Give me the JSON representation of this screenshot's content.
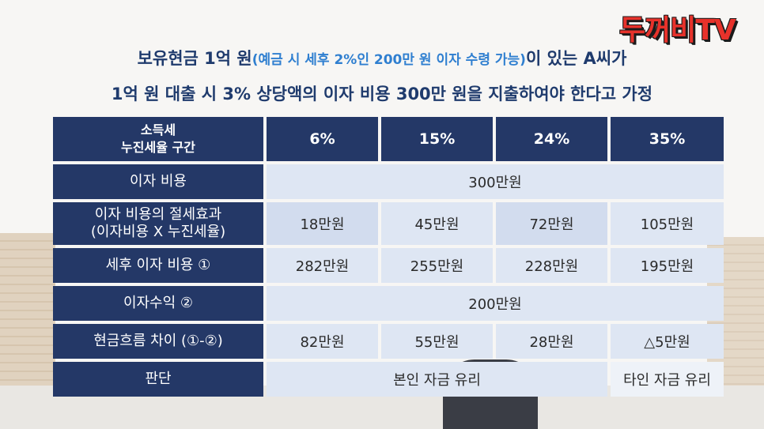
{
  "channel_logo": "두꺼비TV",
  "headline": {
    "line1_prefix": "보유현금 1억 원",
    "line1_paren": "(예금 시 세후 2%인 200만 원 이자 수령 가능)",
    "line1_suffix": "이 있는 A씨가",
    "line2": "1억 원 대출 시 3% 상당액의 이자 비용 300만 원을 지출하여야 한다고 가정"
  },
  "table": {
    "corner_line1": "소득세",
    "corner_line2": "누진세율 구간",
    "brackets": [
      "6%",
      "15%",
      "24%",
      "35%"
    ],
    "rows": {
      "interest_cost": {
        "label": "이자 비용",
        "value": "300만원"
      },
      "tax_saving": {
        "label_line1": "이자 비용의 절세효과",
        "label_line2": "(이자비용 X 누진세율)",
        "values": [
          "18만원",
          "45만원",
          "72만원",
          "105만원"
        ]
      },
      "after_tax_cost": {
        "label": "세후 이자 비용 ①",
        "values": [
          "282만원",
          "255만원",
          "228만원",
          "195만원"
        ]
      },
      "interest_income": {
        "label": "이자수익 ②",
        "value": "200만원"
      },
      "cashflow_diff": {
        "label": "현금흐름 차이 (①-②)",
        "values": [
          "82만원",
          "55만원",
          "28만원",
          "△5만원"
        ]
      },
      "judgement": {
        "label": "판단",
        "own_funds": "본인 자금 유리",
        "others_funds": "타인 자금 유리"
      }
    }
  }
}
